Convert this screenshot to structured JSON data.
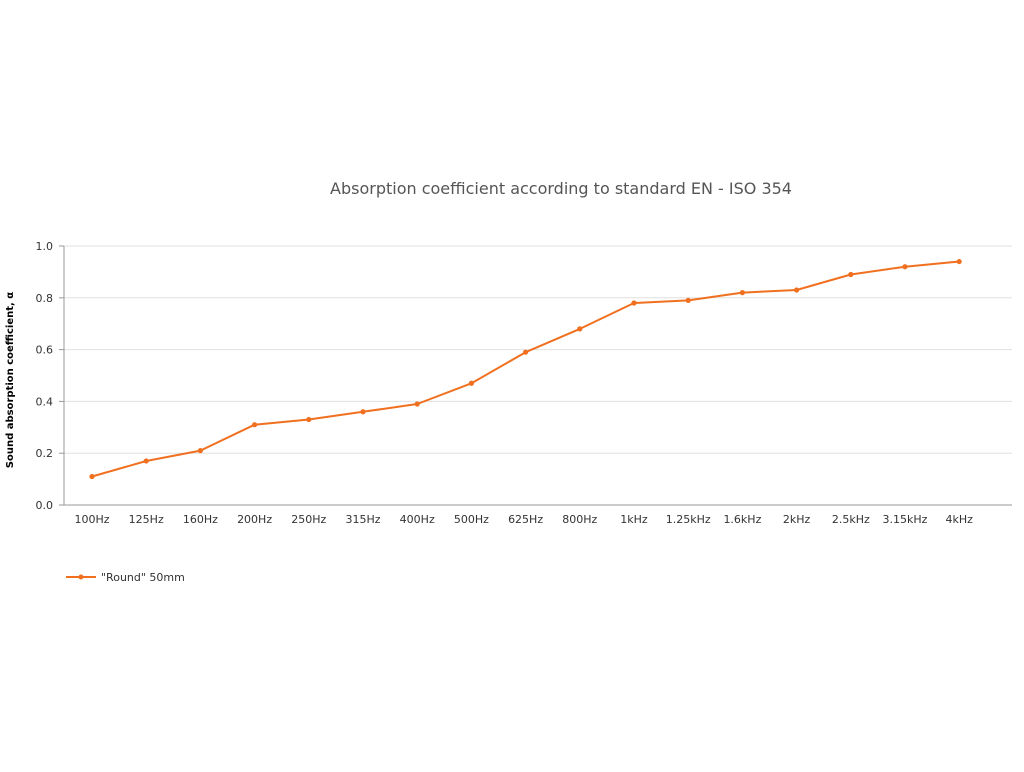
{
  "chart_data": {
    "type": "line",
    "title": "Absorption coefficient according to standard EN - ISO 354",
    "xlabel": "",
    "ylabel": "Sound absorption coefficient, α",
    "categories": [
      "100Hz",
      "125Hz",
      "160Hz",
      "200Hz",
      "250Hz",
      "315Hz",
      "400Hz",
      "500Hz",
      "625Hz",
      "800Hz",
      "1kHz",
      "1.25kHz",
      "1.6kHz",
      "2kHz",
      "2.5kHz",
      "3.15kHz",
      "4kHz"
    ],
    "series": [
      {
        "name": "\"Round\" 50mm",
        "values": [
          0.11,
          0.17,
          0.21,
          0.31,
          0.33,
          0.36,
          0.39,
          0.47,
          0.59,
          0.68,
          0.78,
          0.79,
          0.82,
          0.83,
          0.89,
          0.92,
          0.94
        ],
        "color": "#f07020"
      }
    ],
    "ylim": [
      0,
      1
    ],
    "yticks": [
      "0.0",
      "0.2",
      "0.4",
      "0.6",
      "0.8",
      "1.0"
    ],
    "grid": true,
    "legend": "bottom-left"
  }
}
